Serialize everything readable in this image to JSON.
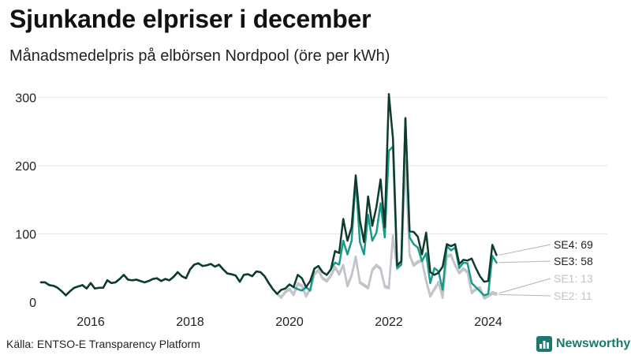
{
  "title": "Sjunkande elpriser i december",
  "subtitle": "Månadsmedelpris på elbörsen Nordpool (öre per kWh)",
  "source": "Källa: ENTSO-E Transparency Platform",
  "brand": "Newsworthy",
  "chart_data": {
    "type": "line",
    "title": "Sjunkande elpriser i december",
    "xlabel": "",
    "ylabel": "öre per kWh",
    "xlim": [
      2015.0,
      2025.0
    ],
    "ylim": [
      0,
      310
    ],
    "yticks": [
      0,
      100,
      200,
      300
    ],
    "xticks": [
      2016,
      2018,
      2020,
      2022,
      2024
    ],
    "grid": true,
    "x_start": 2015.0,
    "x_step_months": 1,
    "series": [
      {
        "name": "SE4",
        "label": "SE4: 69",
        "color": "#0f3b2c",
        "values": [
          29,
          29,
          25,
          24,
          21,
          16,
          10,
          16,
          21,
          23,
          25,
          20,
          28,
          20,
          21,
          21,
          32,
          28,
          29,
          34,
          40,
          33,
          32,
          33,
          31,
          29,
          31,
          34,
          35,
          31,
          34,
          32,
          37,
          44,
          38,
          35,
          48,
          55,
          57,
          53,
          54,
          56,
          52,
          55,
          48,
          42,
          41,
          39,
          30,
          40,
          41,
          38,
          45,
          44,
          38,
          28,
          19,
          12,
          18,
          20,
          26,
          22,
          40,
          35,
          22,
          31,
          49,
          53,
          44,
          40,
          48,
          75,
          72,
          122,
          90,
          110,
          186,
          120,
          88,
          155,
          112,
          140,
          180,
          110,
          305,
          240,
          54,
          60,
          270,
          104,
          103,
          96,
          70,
          102,
          44,
          40,
          43,
          52,
          85,
          82,
          85,
          56,
          62,
          61,
          64,
          50,
          38,
          30,
          31,
          84,
          69
        ]
      },
      {
        "name": "SE3",
        "label": "SE3: 58",
        "color": "#1a9a88",
        "values": [
          29,
          29,
          25,
          24,
          21,
          16,
          10,
          16,
          21,
          23,
          25,
          20,
          28,
          20,
          21,
          21,
          32,
          28,
          29,
          34,
          40,
          33,
          32,
          33,
          31,
          29,
          31,
          34,
          35,
          31,
          34,
          32,
          37,
          44,
          38,
          35,
          48,
          55,
          57,
          53,
          54,
          56,
          52,
          55,
          48,
          42,
          41,
          39,
          30,
          40,
          41,
          38,
          45,
          44,
          38,
          28,
          19,
          12,
          18,
          20,
          26,
          22,
          19,
          17,
          22,
          17,
          49,
          53,
          44,
          40,
          48,
          58,
          55,
          90,
          70,
          90,
          180,
          88,
          70,
          128,
          90,
          102,
          145,
          95,
          222,
          228,
          50,
          55,
          268,
          95,
          85,
          80,
          60,
          72,
          28,
          50,
          45,
          18,
          82,
          76,
          80,
          50,
          58,
          57,
          28,
          22,
          16,
          10,
          12,
          68,
          58
        ]
      },
      {
        "name": "SE1",
        "label": "SE1: 13",
        "color": "#c3c3cc",
        "values": [
          29,
          29,
          25,
          24,
          21,
          16,
          10,
          16,
          21,
          23,
          25,
          20,
          28,
          20,
          21,
          21,
          32,
          28,
          29,
          34,
          40,
          33,
          32,
          33,
          31,
          29,
          31,
          34,
          35,
          31,
          34,
          32,
          37,
          44,
          38,
          35,
          48,
          55,
          57,
          53,
          54,
          56,
          52,
          55,
          48,
          42,
          41,
          39,
          30,
          40,
          41,
          38,
          45,
          44,
          38,
          28,
          19,
          12,
          8,
          16,
          20,
          12,
          28,
          25,
          10,
          20,
          42,
          48,
          36,
          32,
          40,
          52,
          42,
          55,
          25,
          40,
          67,
          30,
          26,
          22,
          48,
          55,
          50,
          24,
          22,
          98,
          50,
          58,
          208,
          70,
          55,
          60,
          62,
          32,
          10,
          20,
          30,
          8,
          68,
          70,
          55,
          44,
          50,
          45,
          15,
          20,
          22,
          6,
          10,
          15,
          13
        ]
      },
      {
        "name": "SE2",
        "label": "SE2: 11",
        "color": "#c3c3cc",
        "values": [
          29,
          29,
          25,
          24,
          21,
          16,
          10,
          16,
          21,
          23,
          25,
          20,
          28,
          20,
          21,
          21,
          32,
          28,
          29,
          34,
          40,
          33,
          32,
          33,
          31,
          29,
          31,
          34,
          35,
          31,
          34,
          32,
          37,
          44,
          38,
          35,
          48,
          55,
          57,
          53,
          54,
          56,
          52,
          55,
          48,
          42,
          41,
          39,
          30,
          40,
          41,
          38,
          45,
          44,
          38,
          28,
          19,
          12,
          6,
          14,
          18,
          10,
          26,
          23,
          8,
          18,
          40,
          46,
          34,
          30,
          38,
          50,
          40,
          53,
          23,
          38,
          65,
          28,
          24,
          20,
          46,
          53,
          48,
          22,
          20,
          96,
          48,
          56,
          206,
          68,
          53,
          58,
          60,
          30,
          8,
          18,
          28,
          6,
          66,
          68,
          53,
          42,
          48,
          43,
          13,
          18,
          20,
          5,
          8,
          12,
          11
        ]
      }
    ]
  }
}
